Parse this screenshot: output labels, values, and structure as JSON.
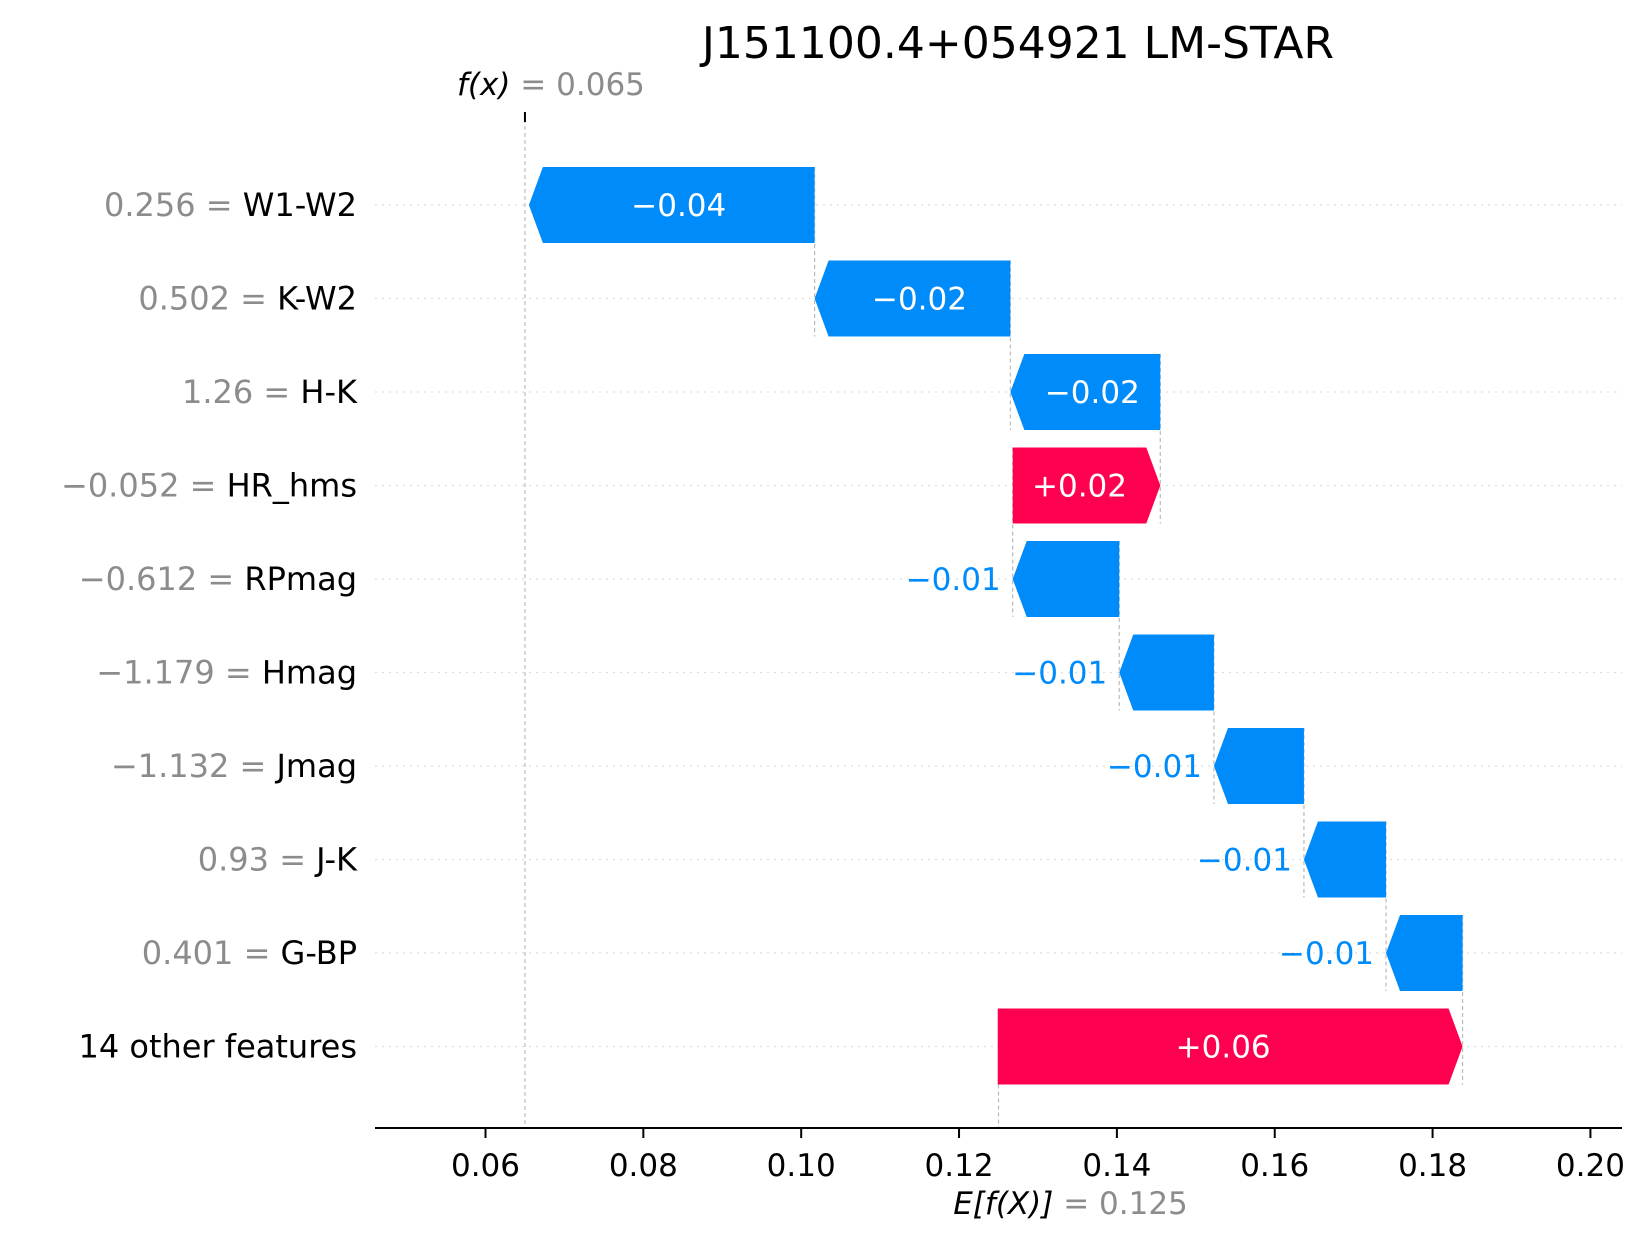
{
  "chart_data": {
    "type": "waterfall",
    "title": "J151100.4+054921 LM-STAR",
    "fx_label": "f(x)",
    "fx_value": 0.065,
    "fx_value_text": "0.065",
    "efx_label": "E[f(X)]",
    "base_value": 0.125,
    "base_value_text": "0.125",
    "xlim": [
      0.046,
      0.204
    ],
    "xticks": [
      0.06,
      0.08,
      0.1,
      0.12,
      0.14,
      0.16,
      0.18,
      0.2
    ],
    "xtick_labels": [
      "0.06",
      "0.08",
      "0.10",
      "0.12",
      "0.14",
      "0.16",
      "0.18",
      "0.20"
    ],
    "features": [
      {
        "value_text": "0.256",
        "name": "W1-W2",
        "start": 0.1017,
        "end": 0.0655,
        "label": "−0.04"
      },
      {
        "value_text": "0.502",
        "name": "K-W2",
        "start": 0.1265,
        "end": 0.1017,
        "label": "−0.02"
      },
      {
        "value_text": "1.26",
        "name": "H-K",
        "start": 0.1455,
        "end": 0.1265,
        "label": "−0.02"
      },
      {
        "value_text": "−0.052",
        "name": "HR_hms",
        "start": 0.1268,
        "end": 0.1455,
        "label": "+0.02"
      },
      {
        "value_text": "−0.612",
        "name": "RPmag",
        "start": 0.1403,
        "end": 0.1268,
        "label": "−0.01"
      },
      {
        "value_text": "−1.179",
        "name": "Hmag",
        "start": 0.1523,
        "end": 0.1403,
        "label": "−0.01"
      },
      {
        "value_text": "−1.132",
        "name": "Jmag",
        "start": 0.1637,
        "end": 0.1523,
        "label": "−0.01"
      },
      {
        "value_text": "0.93",
        "name": "J-K",
        "start": 0.1741,
        "end": 0.1637,
        "label": "−0.01"
      },
      {
        "value_text": "0.401",
        "name": "G-BP",
        "start": 0.1838,
        "end": 0.1741,
        "label": "−0.01"
      },
      {
        "value_text": "",
        "name": "14 other features",
        "start": 0.1249,
        "end": 0.1838,
        "label": "+0.06"
      }
    ],
    "colors": {
      "positive": "#ff0051",
      "negative": "#008bfb",
      "label_gray": "#8c8c8c",
      "guide": "#bbbbbb",
      "row_grid": "#dddddd"
    },
    "grid": false
  }
}
